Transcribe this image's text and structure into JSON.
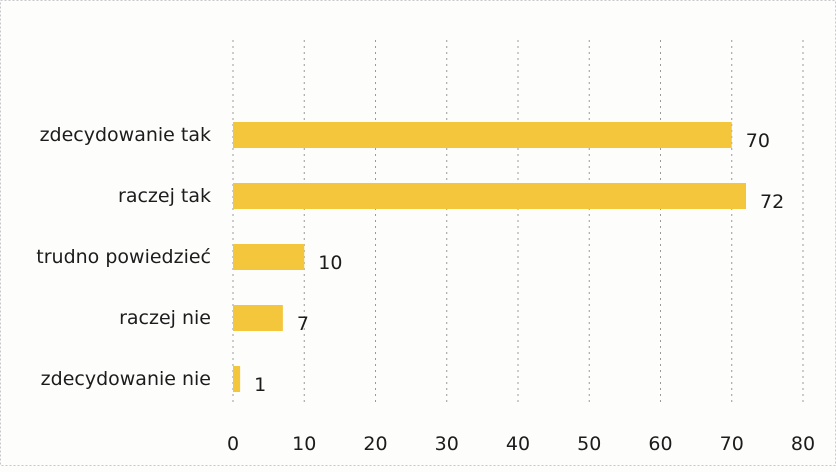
{
  "chart_data": {
    "type": "bar",
    "orientation": "horizontal",
    "categories": [
      "zdecydowanie tak",
      "raczej tak",
      "trudno powiedzieć",
      "raczej nie",
      "zdecydowanie nie"
    ],
    "values": [
      70,
      72,
      10,
      7,
      1
    ],
    "xlim": [
      0,
      80
    ],
    "x_ticks": [
      0,
      10,
      20,
      30,
      40,
      50,
      60,
      70,
      80
    ],
    "grid": "vertical-dashed",
    "data_labels": true,
    "title": "",
    "xlabel": "",
    "ylabel": "",
    "bar_color": "#f4c63c",
    "grid_color": "#9a9a9a"
  }
}
